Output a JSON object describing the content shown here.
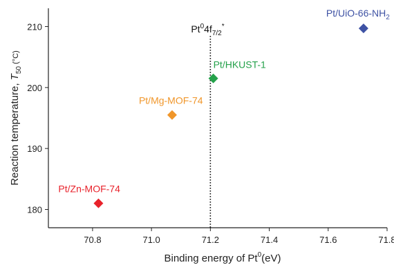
{
  "chart_data": {
    "type": "scatter",
    "xlabel": "Binding energy of Pt",
    "xlabel_sup": "0",
    "xlabel_unit": "(eV)",
    "ylabel": "Reaction temperature, ",
    "ylabel_symbol": "T",
    "ylabel_sub": "50",
    "ylabel_unit": " (°C)",
    "xlim": [
      70.65,
      71.8
    ],
    "ylim": [
      177,
      213
    ],
    "x_ticks": [
      70.8,
      71.0,
      71.2,
      71.4,
      71.6,
      71.8
    ],
    "y_ticks": [
      180,
      190,
      200,
      210
    ],
    "grid": false,
    "marker": "diamond",
    "reference_line": {
      "x": 71.2,
      "style": "dotted",
      "label_parts": [
        "Pt",
        "0",
        "4f",
        "7/2",
        "*"
      ]
    },
    "points": [
      {
        "label": "Pt/Zn-MOF-74",
        "x": 70.82,
        "y": 181.0,
        "color": "#e8222b"
      },
      {
        "label": "Pt/Mg-MOF-74",
        "x": 71.07,
        "y": 195.5,
        "color": "#f0962a"
      },
      {
        "label": "Pt/HKUST-1",
        "x": 71.21,
        "y": 201.5,
        "color": "#24a14a"
      },
      {
        "label": "Pt/UiO-66-NH",
        "label_sub": "2",
        "x": 71.72,
        "y": 209.7,
        "color": "#3e52a4"
      }
    ]
  }
}
